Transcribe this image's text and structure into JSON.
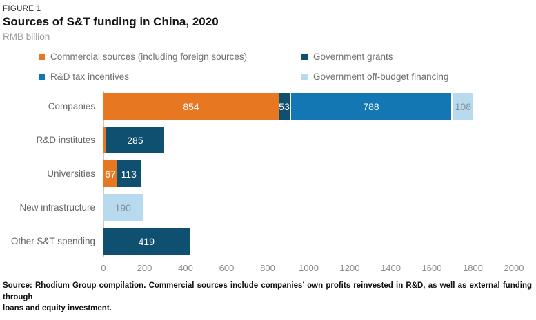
{
  "figure": {
    "eyebrow": "FIGURE 1",
    "title": "Sources of S&T funding in China, 2020",
    "subtitle": "RMB billion",
    "source_line1": "Source: Rhodium Group compilation. Commercial sources include companies’ own profits reinvested in R&D, as well as external funding through",
    "source_line2": "loans and equity investment."
  },
  "colors": {
    "commercial": "#E87722",
    "grants": "#0F5070",
    "tax_incentives": "#1377B4",
    "off_budget": "#B7DAEF",
    "axis_line": "#C9C9C9",
    "category_text": "#666666",
    "tick_text": "#8A8A8A",
    "value_light": "#FFFFFF",
    "value_dark": "#878E94"
  },
  "legend": {
    "items": [
      {
        "label": "Commercial sources (including foreign sources)",
        "color_key": "commercial"
      },
      {
        "label": "Government grants",
        "color_key": "grants"
      },
      {
        "label": "R&D tax incentives",
        "color_key": "tax_incentives"
      },
      {
        "label": "Government off-budget financing",
        "color_key": "off_budget"
      }
    ]
  },
  "chart_data": {
    "type": "bar",
    "orientation": "horizontal",
    "stacked": true,
    "title": "Sources of S&T funding in China, 2020",
    "units": "RMB billion",
    "xlim": [
      0,
      2000
    ],
    "xticks": [
      0,
      200,
      400,
      600,
      800,
      1000,
      1200,
      1400,
      1600,
      1800,
      2000
    ],
    "grid": false,
    "legend_position": "top",
    "categories": [
      "Companies",
      "R&D institutes",
      "Universities",
      "New infrastructure",
      "Other S&T spending"
    ],
    "series": [
      {
        "name": "Commercial sources (including foreign sources)",
        "color_key": "commercial",
        "values": [
          854,
          12,
          67,
          0,
          0
        ]
      },
      {
        "name": "Government grants",
        "color_key": "grants",
        "values": [
          53,
          285,
          113,
          0,
          419
        ]
      },
      {
        "name": "R&D tax incentives",
        "color_key": "tax_incentives",
        "values": [
          788,
          0,
          0,
          0,
          0
        ]
      },
      {
        "name": "Government off-budget financing",
        "color_key": "off_budget",
        "values": [
          108,
          0,
          0,
          190,
          0
        ]
      }
    ],
    "rows": [
      {
        "label": "Companies",
        "segments": [
          {
            "series": "commercial",
            "value": 854,
            "label": "854",
            "text": "light"
          },
          {
            "series": "grants",
            "value": 53,
            "label": "53",
            "text": "light"
          },
          {
            "series": "tax_incentives",
            "value": 788,
            "label": "788",
            "text": "light",
            "sep": true
          },
          {
            "series": "off_budget",
            "value": 108,
            "label": "108",
            "text": "dark",
            "sep": true
          }
        ]
      },
      {
        "label": "R&D institutes",
        "segments": [
          {
            "series": "commercial",
            "value": 12,
            "label": "",
            "text": "light"
          },
          {
            "series": "grants",
            "value": 285,
            "label": "285",
            "text": "light"
          }
        ]
      },
      {
        "label": "Universities",
        "segments": [
          {
            "series": "commercial",
            "value": 67,
            "label": "67",
            "text": "light"
          },
          {
            "series": "grants",
            "value": 113,
            "label": "113",
            "text": "light"
          }
        ]
      },
      {
        "label": "New infrastructure",
        "segments": [
          {
            "series": "off_budget",
            "value": 190,
            "label": "190",
            "text": "dark"
          }
        ]
      },
      {
        "label": "Other S&T spending",
        "segments": [
          {
            "series": "grants",
            "value": 419,
            "label": "419",
            "text": "light"
          }
        ]
      }
    ]
  }
}
